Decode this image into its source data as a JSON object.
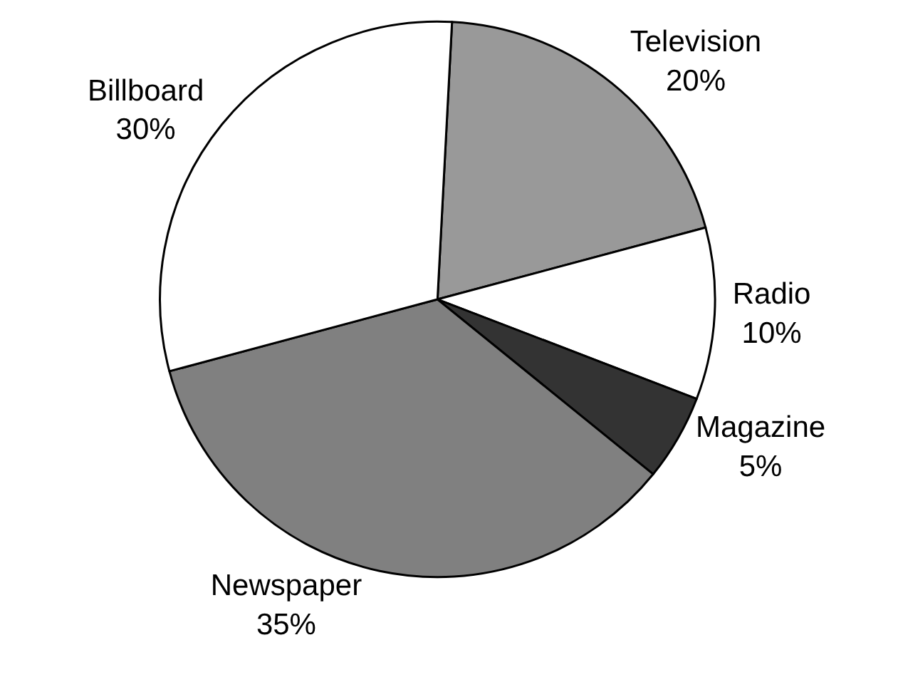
{
  "chart_data": {
    "type": "pie",
    "categories": [
      "Television",
      "Radio",
      "Magazine",
      "Newspaper",
      "Billboard"
    ],
    "values": [
      20,
      10,
      5,
      35,
      30
    ],
    "value_labels": [
      "20%",
      "10%",
      "5%",
      "35%",
      "30%"
    ],
    "colors": [
      "#999999",
      "#ffffff",
      "#333333",
      "#808080",
      "#ffffff"
    ],
    "legend": false
  }
}
